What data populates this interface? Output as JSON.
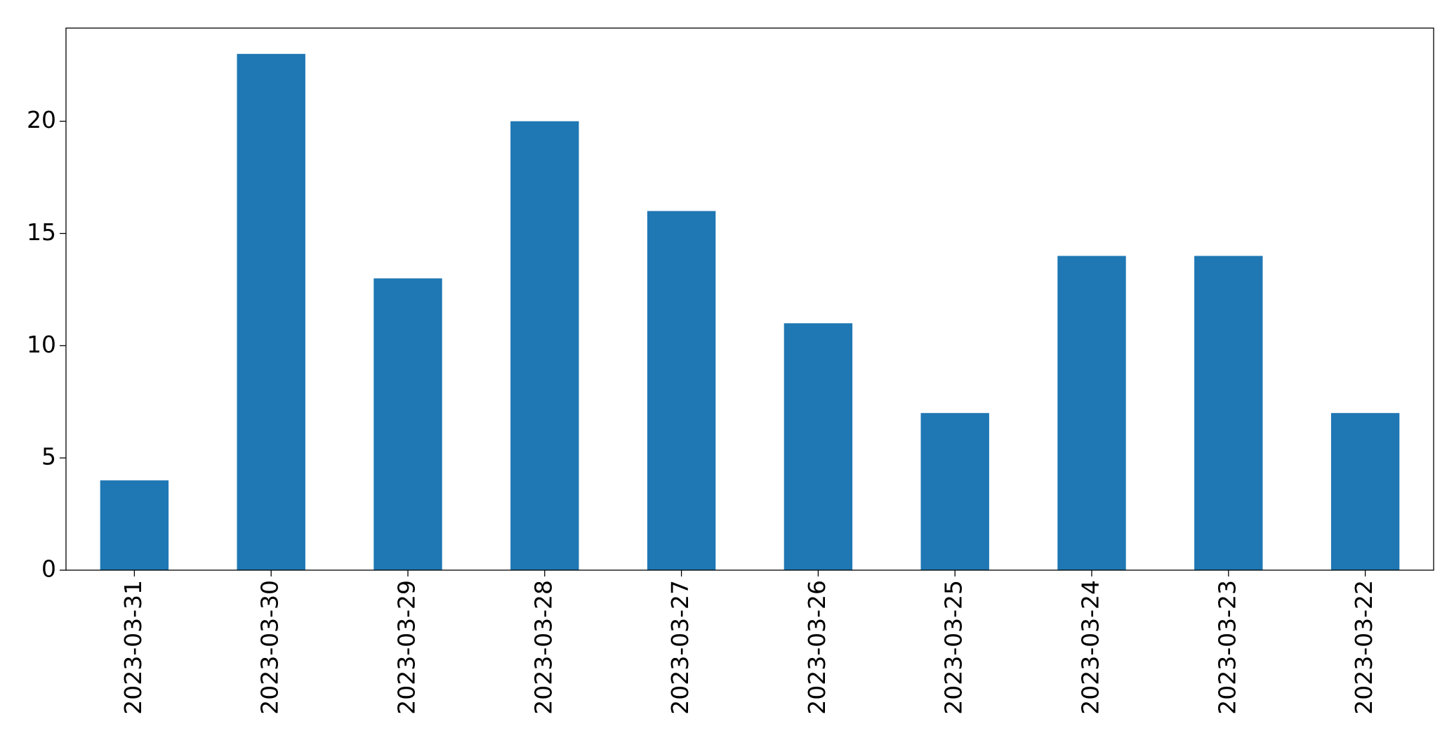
{
  "chart_data": {
    "type": "bar",
    "categories": [
      "2023-03-31",
      "2023-03-30",
      "2023-03-29",
      "2023-03-28",
      "2023-03-27",
      "2023-03-26",
      "2023-03-25",
      "2023-03-24",
      "2023-03-23",
      "2023-03-22"
    ],
    "values": [
      4,
      23,
      13,
      20,
      16,
      11,
      7,
      14,
      14,
      7
    ],
    "color": "#1f77b4",
    "ylim": [
      0,
      24.15
    ],
    "yticks": [
      0,
      5,
      10,
      15,
      20
    ],
    "grid": false
  }
}
